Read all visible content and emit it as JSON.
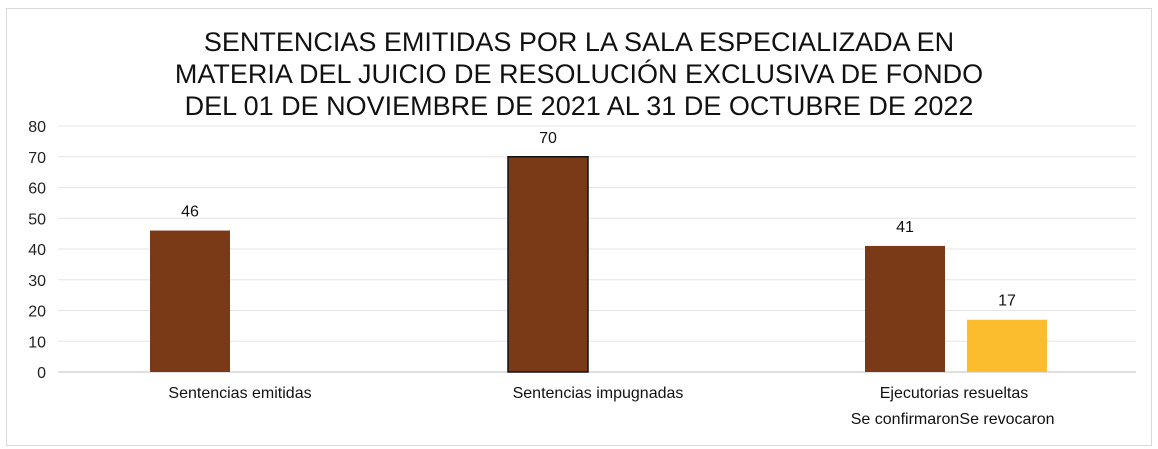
{
  "chart_data": {
    "type": "bar",
    "title": [
      "SENTENCIAS EMITIDAS POR LA SALA ESPECIALIZADA EN",
      "MATERIA DEL JUICIO DE RESOLUCIÓN EXCLUSIVA DE FONDO",
      "DEL 01 DE NOVIEMBRE DE 2021 AL 31 DE OCTUBRE DE 2022"
    ],
    "ylim": [
      0,
      80
    ],
    "yticks": [
      0,
      10,
      20,
      30,
      40,
      50,
      60,
      70,
      80
    ],
    "grid": true,
    "categories": [
      "Sentencias emitidas",
      "Sentencias impugnadas",
      "Ejecutorias resueltas"
    ],
    "bars": [
      {
        "category": "Sentencias emitidas",
        "value": 46,
        "color": "#7a3a18",
        "label": "46"
      },
      {
        "category": "Sentencias impugnadas",
        "value": 70,
        "color": "#7a3a18",
        "label": "70"
      },
      {
        "category": "Ejecutorias resueltas",
        "sub_label": "Se confirmaron",
        "value": 41,
        "color": "#7a3a18",
        "label": "41"
      },
      {
        "category": "Ejecutorias resueltas",
        "sub_label": "Se revocaron",
        "value": 17,
        "color": "#fbbd2e",
        "label": "17"
      }
    ]
  }
}
